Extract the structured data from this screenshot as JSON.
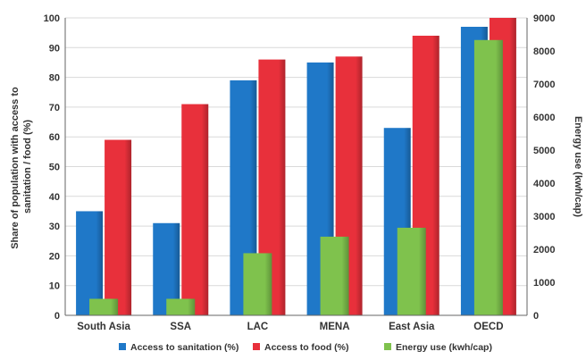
{
  "chart_data": {
    "type": "bar",
    "categories": [
      "South Asia",
      "SSA",
      "LAC",
      "MENA",
      "East Asia",
      "OECD"
    ],
    "series": [
      {
        "name": "Access to sanitation (%)",
        "axis": "left",
        "color": "#1f78c8",
        "values": [
          35,
          31,
          79,
          85,
          63,
          97
        ]
      },
      {
        "name": "Access to food (%)",
        "axis": "left",
        "color": "#e8303b",
        "values": [
          59,
          71,
          86,
          87,
          94,
          100
        ]
      },
      {
        "name": "Energy use (kwh/cap)",
        "axis": "right",
        "color": "#7fc24d",
        "values": [
          500,
          500,
          1880,
          2380,
          2650,
          8330
        ]
      }
    ],
    "ylabel": "Share of population with access to sanitation / food (%)",
    "ylabel_lines": [
      "Share of population with access to",
      "sanitation / food (%)"
    ],
    "y2label": "Energy use (kwh/cap)",
    "ylim": [
      0,
      100
    ],
    "y2lim": [
      0,
      9000
    ],
    "yticks": [
      "0",
      "10",
      "20",
      "30",
      "40",
      "50",
      "60",
      "70",
      "80",
      "90",
      "100"
    ],
    "y2ticks": [
      "0",
      "1000",
      "2000",
      "3000",
      "4000",
      "5000",
      "6000",
      "7000",
      "8000",
      "9000"
    ],
    "grid": true,
    "legend_position": "bottom"
  }
}
